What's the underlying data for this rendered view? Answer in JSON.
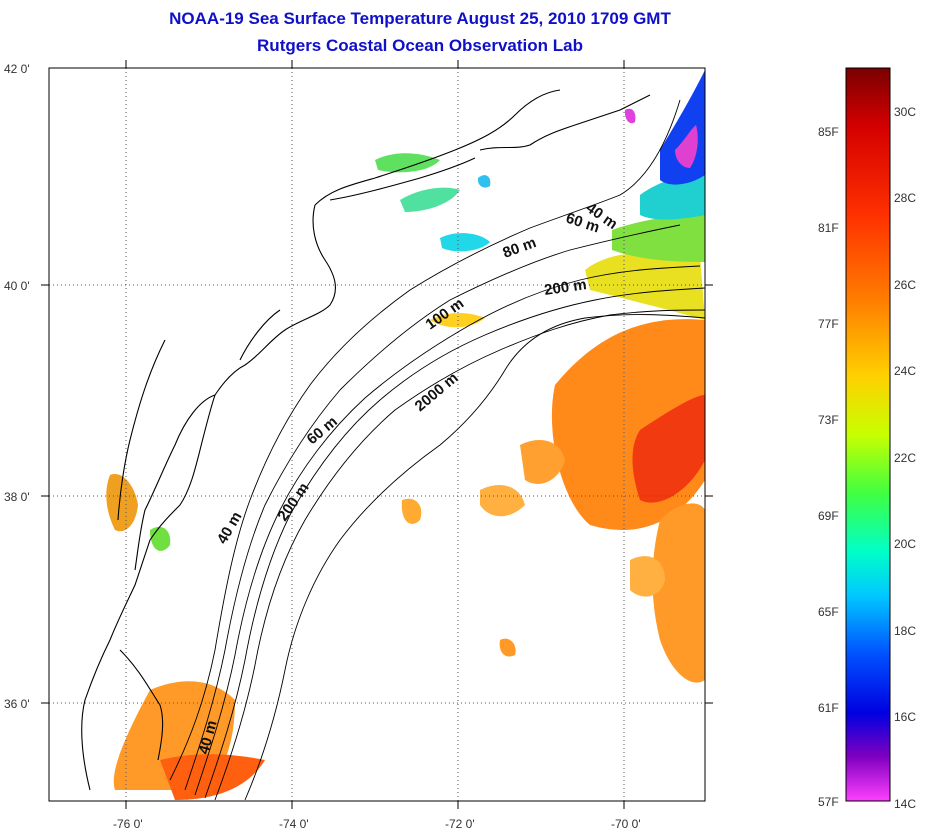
{
  "title_line1": "NOAA-19 Sea Surface Temperature August 25, 2010 1709 GMT",
  "title_line2": "Rutgers Coastal Ocean Observation Lab",
  "axes": {
    "lon_ticks": [
      "-76 0'",
      "-74 0'",
      "-72 0'",
      "-70 0'"
    ],
    "lat_ticks": [
      "42 0'",
      "40 0'",
      "38 0'",
      "36 0'"
    ],
    "lon_range": [
      -77,
      -69
    ],
    "lat_range": [
      35,
      42
    ]
  },
  "contour_labels": [
    "40 m",
    "60 m",
    "80 m",
    "200 m",
    "100 m",
    "2000 m",
    "60 m",
    "40 m",
    "200 m",
    "40 m"
  ],
  "colorbar": {
    "fahrenheit": [
      "85F",
      "81F",
      "77F",
      "73F",
      "69F",
      "65F",
      "61F",
      "57F"
    ],
    "celsius": [
      "30C",
      "28C",
      "26C",
      "24C",
      "22C",
      "20C",
      "18C",
      "16C",
      "14C"
    ],
    "colors": [
      "#7a0000",
      "#d40000",
      "#ff3000",
      "#ff8000",
      "#ffd000",
      "#c8ff00",
      "#40ff40",
      "#00ffc8",
      "#00c8ff",
      "#0050ff",
      "#0000e0",
      "#8000c0",
      "#ff40ff"
    ]
  }
}
